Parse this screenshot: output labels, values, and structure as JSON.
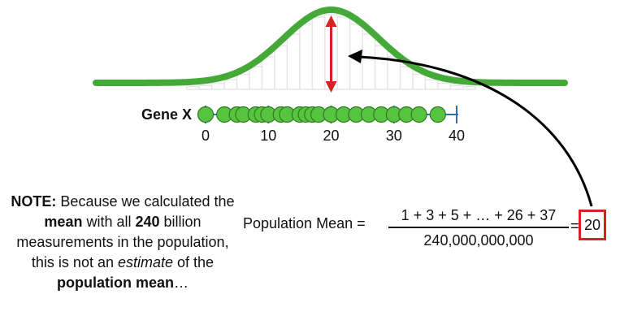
{
  "gene_label": "Gene X",
  "axis_ticks": [
    "0",
    "10",
    "20",
    "30",
    "40"
  ],
  "note": {
    "lead": "NOTE:",
    "t1": " Because we calculated the ",
    "mean_word": "mean",
    "t2": " with all ",
    "count": "240",
    "t3": " billion measurements in the population, this is not an ",
    "estimate_word": "estimate",
    "t4": " of the ",
    "pop_mean_word": "population mean",
    "t5": "…"
  },
  "formula": {
    "label": "Population Mean =",
    "numerator": "1 + 3 + 5 + … + 26 + 37",
    "denominator": "240,000,000,000",
    "equals": "=",
    "result": "20"
  },
  "colors": {
    "curve": "#44a938",
    "dot_fill": "#57c43f",
    "dot_stroke": "#2f7a24",
    "axis": "#2f6fb0",
    "mean_arrow": "#d62222",
    "box": "#d62222",
    "hist_bar": "#e6e6e6",
    "pointer_arrow": "#000000"
  },
  "data_points": [
    0,
    3,
    5,
    6,
    8,
    9,
    10,
    12,
    13,
    15,
    16,
    17,
    18,
    20,
    22,
    24,
    26,
    28,
    30,
    32,
    34,
    37
  ]
}
